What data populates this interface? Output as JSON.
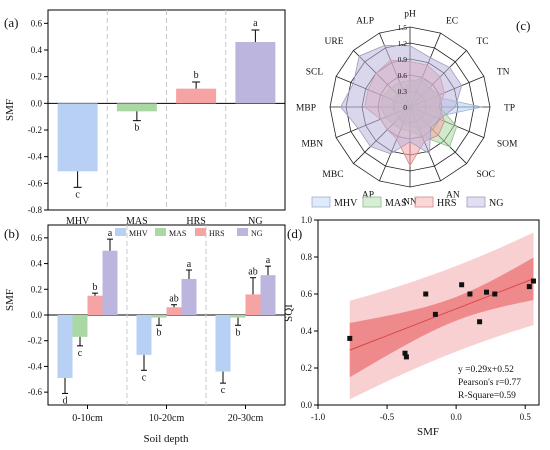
{
  "panels": {
    "a": {
      "tag": "(a)"
    },
    "b": {
      "tag": "(b)"
    },
    "c": {
      "tag": "(c)"
    },
    "d": {
      "tag": "(d)"
    }
  },
  "colors": {
    "MHV": "#b7d0f3",
    "MAS": "#a9d8a2",
    "HRS": "#f6a3a3",
    "NG": "#bcb6df",
    "fit_line": "#d9464a",
    "ci_band": "#ef8a8c",
    "pi_band": "#f9d0d1"
  },
  "chart_data": [
    {
      "panel": "a",
      "type": "bar",
      "title": "",
      "xlabel": "",
      "ylabel": "SMF",
      "ylim": [
        -0.8,
        0.7
      ],
      "yticks": [
        "-0.8",
        "-0.6",
        "-0.4",
        "-0.2",
        "0.0",
        "0.2",
        "0.4",
        "0.6"
      ],
      "categories": [
        "MHV",
        "MAS",
        "HRS",
        "NG"
      ],
      "values": [
        -0.51,
        -0.06,
        0.11,
        0.46
      ],
      "errors": [
        0.12,
        0.07,
        0.05,
        0.09
      ],
      "letters": [
        "c",
        "b",
        "b",
        "a"
      ]
    },
    {
      "panel": "b",
      "type": "bar",
      "title": "",
      "xlabel": "Soil depth",
      "ylabel": "SMF",
      "ylim": [
        -0.7,
        0.7
      ],
      "yticks": [
        "-0.6",
        "-0.4",
        "-0.2",
        "0.0",
        "0.2",
        "0.4",
        "0.6"
      ],
      "categories": [
        "0-10cm",
        "10-20cm",
        "20-30cm"
      ],
      "legend": [
        "MHV",
        "MAS",
        "HRS",
        "NG"
      ],
      "series": [
        {
          "name": "MHV",
          "values": [
            -0.49,
            -0.31,
            -0.44
          ],
          "errors": [
            0.12,
            0.12,
            0.09
          ],
          "letters": [
            "d",
            "c",
            "c"
          ]
        },
        {
          "name": "MAS",
          "values": [
            -0.17,
            -0.02,
            -0.02
          ],
          "errors": [
            0.07,
            0.06,
            0.06
          ],
          "letters": [
            "c",
            "b",
            "b"
          ]
        },
        {
          "name": "HRS",
          "values": [
            0.15,
            0.06,
            0.16
          ],
          "errors": [
            0.02,
            0.02,
            0.13
          ],
          "letters": [
            "b",
            "ab",
            "ab"
          ]
        },
        {
          "name": "NG",
          "values": [
            0.5,
            0.28,
            0.31
          ],
          "errors": [
            0.09,
            0.07,
            0.07
          ],
          "letters": [
            "a",
            "a",
            "a"
          ]
        }
      ]
    },
    {
      "panel": "c",
      "type": "radar",
      "title": "",
      "axes": [
        "pH",
        "EC",
        "TC",
        "TN",
        "TP",
        "SOM",
        "SOC",
        "AN",
        "NN",
        "AP",
        "MBC",
        "MBN",
        "MBP",
        "SCL",
        "URE",
        "ALP"
      ],
      "rlim": [
        0,
        1.5
      ],
      "rticks": [
        "0",
        "0.3",
        "0.6",
        "0.9",
        "1.2",
        "1.5"
      ],
      "legend": [
        "MHV",
        "MAS",
        "HRS",
        "NG"
      ],
      "series": [
        {
          "name": "MHV",
          "values": [
            0.45,
            0.6,
            0.55,
            0.5,
            1.35,
            0.5,
            0.5,
            0.45,
            0.35,
            0.35,
            0.3,
            0.3,
            0.35,
            0.35,
            0.35,
            0.35
          ]
        },
        {
          "name": "MAS",
          "values": [
            0.5,
            0.55,
            0.5,
            0.6,
            0.55,
            0.95,
            1.05,
            0.6,
            0.45,
            0.45,
            0.45,
            0.5,
            0.55,
            0.55,
            0.5,
            0.5
          ]
        },
        {
          "name": "HRS",
          "values": [
            0.85,
            0.85,
            0.8,
            0.7,
            0.55,
            0.7,
            0.75,
            0.7,
            1.1,
            0.65,
            0.6,
            0.6,
            0.85,
            0.85,
            0.9,
            0.95
          ]
        },
        {
          "name": "NG",
          "values": [
            1.15,
            1.0,
            1.05,
            1.05,
            0.85,
            0.6,
            0.55,
            0.95,
            0.65,
            0.95,
            1.05,
            1.05,
            1.3,
            1.15,
            1.35,
            1.25
          ]
        }
      ]
    },
    {
      "panel": "d",
      "type": "scatter",
      "title": "",
      "xlabel": "SMF",
      "ylabel": "SQI",
      "xlim": [
        -1.0,
        0.6
      ],
      "ylim": [
        0.0,
        1.0
      ],
      "xticks": [
        "-1.0",
        "-0.5",
        "0.0",
        "0.5"
      ],
      "yticks": [
        "0.0",
        "0.2",
        "0.4",
        "0.6",
        "0.8",
        "1.0"
      ],
      "points": [
        {
          "x": -0.77,
          "y": 0.36
        },
        {
          "x": -0.37,
          "y": 0.28
        },
        {
          "x": -0.36,
          "y": 0.26
        },
        {
          "x": -0.22,
          "y": 0.6
        },
        {
          "x": -0.15,
          "y": 0.49
        },
        {
          "x": 0.04,
          "y": 0.65
        },
        {
          "x": 0.1,
          "y": 0.6
        },
        {
          "x": 0.17,
          "y": 0.45
        },
        {
          "x": 0.22,
          "y": 0.61
        },
        {
          "x": 0.28,
          "y": 0.6
        },
        {
          "x": 0.53,
          "y": 0.64
        },
        {
          "x": 0.56,
          "y": 0.67
        }
      ],
      "fit": {
        "slope": 0.29,
        "intercept": 0.52
      },
      "annotation": [
        "y =0.29x+0.52",
        "Pearson's r=0.77",
        "R-Square=0.59"
      ]
    }
  ]
}
